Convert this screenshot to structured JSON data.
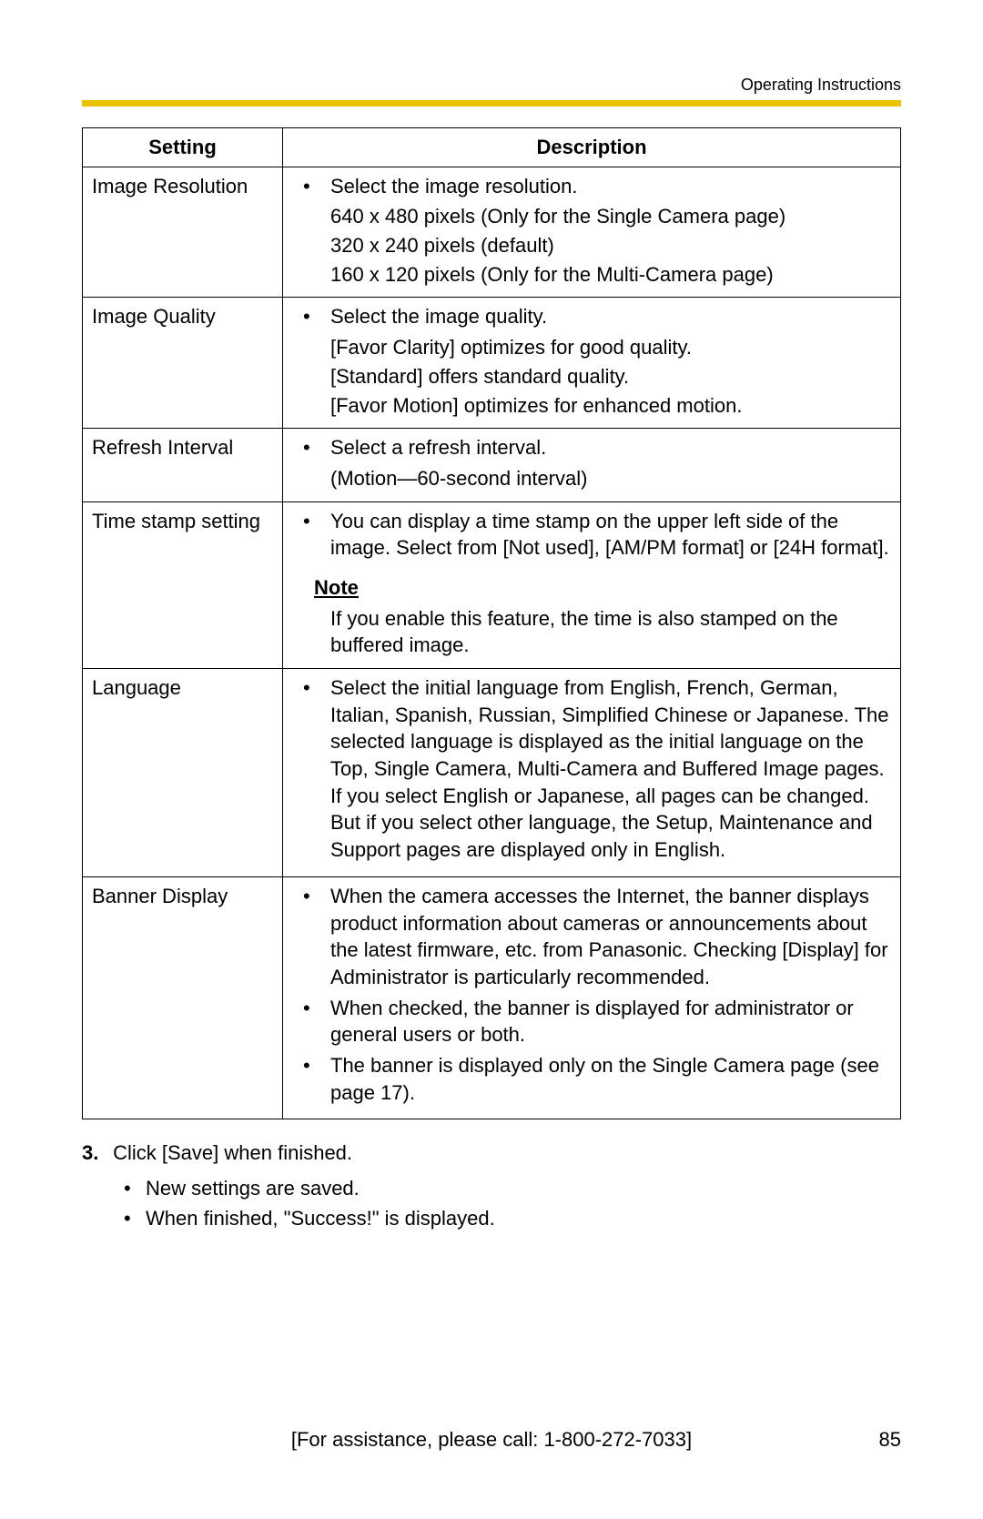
{
  "header": {
    "title": "Operating Instructions"
  },
  "accent_color": "#e9c200",
  "table": {
    "columns": {
      "setting": "Setting",
      "description": "Description"
    },
    "rows": [
      {
        "setting": "Image Resolution",
        "bullets": [
          {
            "text": "Select the image resolution.",
            "sublines": [
              "640 x 480 pixels (Only for the Single Camera page)",
              "320 x 240 pixels (default)",
              "160 x 120 pixels (Only for the Multi-Camera page)"
            ]
          }
        ]
      },
      {
        "setting": "Image Quality",
        "bullets": [
          {
            "text": "Select the image quality.",
            "sublines": [
              "[Favor Clarity] optimizes for good quality.",
              "[Standard] offers standard quality.",
              "[Favor Motion] optimizes for enhanced motion."
            ]
          }
        ]
      },
      {
        "setting": "Refresh Interval",
        "bullets": [
          {
            "text": "Select a refresh interval.",
            "sublines": [
              "(Motion—60-second interval)"
            ]
          }
        ]
      },
      {
        "setting": "Time stamp setting",
        "bullets": [
          {
            "text": "You can display a time stamp on the upper left side of the image. Select from [Not used], [AM/PM format] or [24H format]."
          }
        ],
        "note": {
          "heading": "Note",
          "body": "If you enable this feature, the time is also stamped on the buffered image."
        }
      },
      {
        "setting": "Language",
        "bullets": [
          {
            "text": "Select the initial language from English, French, German, Italian, Spanish, Russian, Simplified Chinese or Japanese. The selected language is displayed as the initial language on the Top, Single Camera, Multi-Camera and Buffered Image pages. If you select English or Japanese, all pages can be changed. But if you select other language, the Setup, Maintenance and Support pages are displayed only in English."
          }
        ]
      },
      {
        "setting": "Banner Display",
        "bullets": [
          {
            "text": "When the camera accesses the Internet, the banner displays product information about cameras or announcements about the latest firmware, etc. from Panasonic. Checking [Display] for Administrator is particularly recommended."
          },
          {
            "text": "When checked, the banner is displayed for administrator or general users or both."
          },
          {
            "text": "The banner is displayed only on the Single Camera page (see page 17)."
          }
        ]
      }
    ]
  },
  "step": {
    "number": "3.",
    "text": "Click [Save] when finished.",
    "bullets": [
      "New settings are saved.",
      "When finished, \"Success!\" is displayed."
    ]
  },
  "footer": {
    "assist": "[For assistance, please call: 1-800-272-7033]",
    "page_number": "85"
  }
}
